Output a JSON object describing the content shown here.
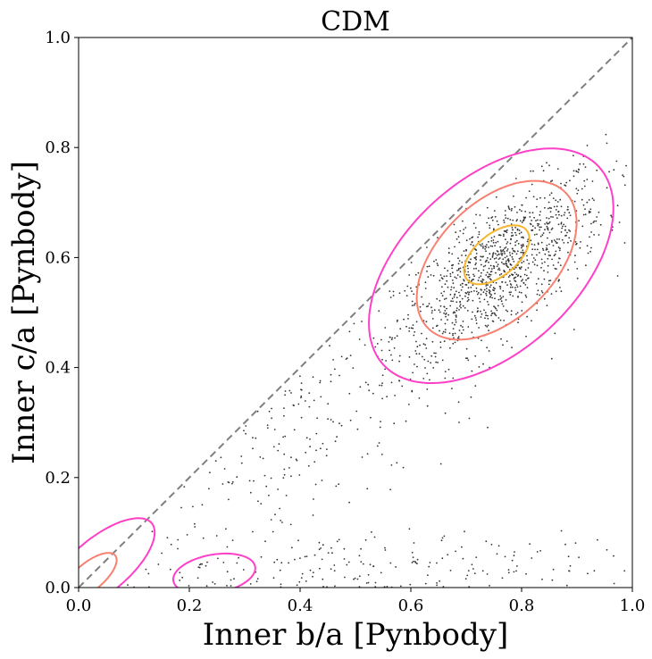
{
  "chart_data": {
    "type": "scatter",
    "title": "CDM",
    "xlabel": "Inner b/a [Pynbody]",
    "ylabel": "Inner c/a [Pynbody]",
    "xlim": [
      0.0,
      1.0
    ],
    "ylim": [
      0.0,
      1.0
    ],
    "xticks": [
      "0.0",
      "0.2",
      "0.4",
      "0.6",
      "0.8",
      "1.0"
    ],
    "yticks": [
      "0.0",
      "0.2",
      "0.4",
      "0.6",
      "0.8",
      "1.0"
    ],
    "grid": false,
    "legend": "none",
    "reference_line": {
      "style": "dashed",
      "color": "#7f7f7f",
      "from": [
        0,
        0
      ],
      "to": [
        1,
        1
      ]
    },
    "point_color": "#333333",
    "clusters": [
      {
        "center": [
          0.76,
          0.58
        ],
        "spread": [
          0.095,
          0.085
        ],
        "corr": 0.72,
        "count": 1100
      },
      {
        "center": [
          0.42,
          0.28
        ],
        "spread": [
          0.16,
          0.13
        ],
        "corr": 0.6,
        "count": 260
      },
      {
        "center": [
          0.5,
          0.04
        ],
        "spread": [
          0.28,
          0.03
        ],
        "corr": 0.0,
        "count": 220
      }
    ],
    "contours": [
      {
        "color": "#ff3fc8",
        "cx": 0.745,
        "cy": 0.585,
        "rx": 0.265,
        "ry": 0.155,
        "angle_deg": 43
      },
      {
        "color": "#f88070",
        "cx": 0.755,
        "cy": 0.595,
        "rx": 0.175,
        "ry": 0.105,
        "angle_deg": 45
      },
      {
        "color": "#f5b62c",
        "cx": 0.755,
        "cy": 0.605,
        "rx": 0.07,
        "ry": 0.038,
        "angle_deg": 40
      },
      {
        "color": "#ff3fc8",
        "cx": 0.04,
        "cy": 0.04,
        "rx": 0.12,
        "ry": 0.05,
        "angle_deg": 40
      },
      {
        "color": "#f88070",
        "cx": 0.02,
        "cy": 0.02,
        "rx": 0.06,
        "ry": 0.025,
        "angle_deg": 40
      },
      {
        "color": "#ff3fc8",
        "cx": 0.245,
        "cy": 0.025,
        "rx": 0.075,
        "ry": 0.035,
        "angle_deg": 10
      }
    ]
  }
}
